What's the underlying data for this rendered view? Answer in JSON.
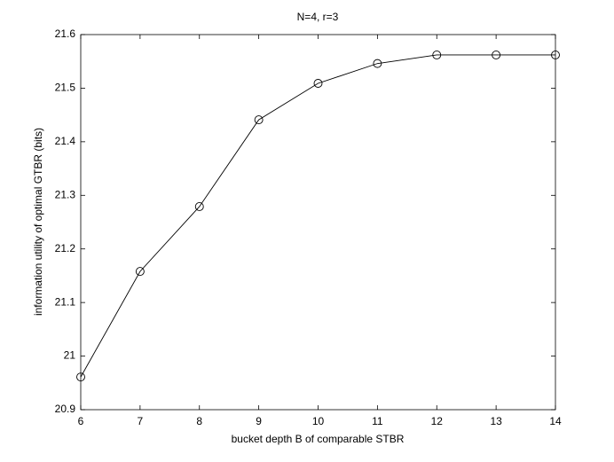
{
  "chart_data": {
    "type": "line",
    "title": "N=4, r=3",
    "x_label": "bucket depth B of comparable STBR",
    "y_label": "information utility of optimal GTBR (bits)",
    "x": [
      6,
      7,
      8,
      9,
      10,
      11,
      12,
      13,
      14
    ],
    "series": [
      {
        "name": "GTBR",
        "color": "#000000",
        "marker": "circle",
        "values": [
          20.961,
          21.158,
          21.279,
          21.441,
          21.509,
          21.546,
          21.562,
          21.562,
          21.562
        ]
      }
    ],
    "xlim": [
      6,
      14
    ],
    "xticks": [
      6,
      7,
      8,
      9,
      10,
      11,
      12,
      13,
      14
    ],
    "ylim": [
      20.9,
      21.6
    ],
    "yticks": [
      20.9,
      {
        "value": 21.0,
        "label": "21"
      },
      21.1,
      21.2,
      21.3,
      21.4,
      21.5,
      21.6
    ],
    "grid": false
  }
}
